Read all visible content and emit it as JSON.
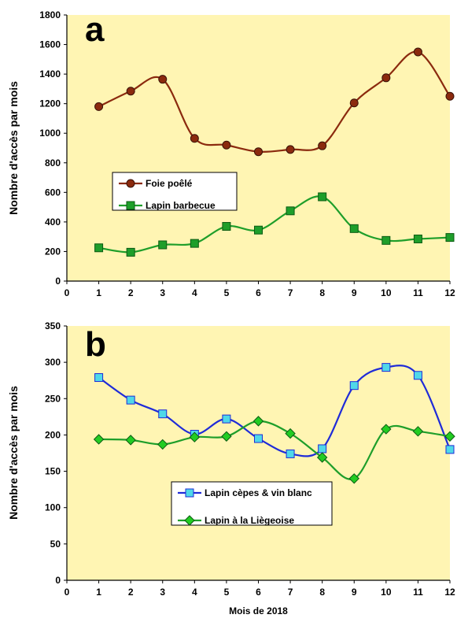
{
  "chart_data": [
    {
      "type": "line",
      "panel_label": "a",
      "ylabel": "Nombre d'accès par mois",
      "xlim": [
        0,
        12
      ],
      "ylim": [
        0,
        1800
      ],
      "x_ticks": [
        "0",
        "1",
        "2",
        "3",
        "4",
        "5",
        "6",
        "7",
        "8",
        "9",
        "10",
        "11",
        "12"
      ],
      "y_ticks": [
        "0",
        "200",
        "400",
        "600",
        "800",
        "1000",
        "1200",
        "1400",
        "1600",
        "1800"
      ],
      "grid": false,
      "legend_placement": "center-left",
      "x": [
        1,
        2,
        3,
        4,
        5,
        6,
        7,
        8,
        9,
        10,
        11,
        12
      ],
      "series": [
        {
          "name": "Foie poêlé",
          "color": "#8B2A0E",
          "marker": "circle",
          "values": [
            1180,
            1285,
            1365,
            965,
            920,
            875,
            890,
            915,
            1205,
            1375,
            1550,
            1250
          ]
        },
        {
          "name": "Lapin barbecue",
          "color": "#1E9E2A",
          "marker": "square",
          "values": [
            225,
            195,
            245,
            255,
            370,
            345,
            475,
            570,
            355,
            275,
            285,
            295
          ]
        }
      ]
    },
    {
      "type": "line",
      "panel_label": "b",
      "ylabel": "Nombre d'accès par mois",
      "xlabel": "Mois de 2018",
      "xlim": [
        0,
        12
      ],
      "ylim": [
        0,
        350
      ],
      "x_ticks": [
        "0",
        "1",
        "2",
        "3",
        "4",
        "5",
        "6",
        "7",
        "8",
        "9",
        "10",
        "11",
        "12"
      ],
      "y_ticks": [
        "0",
        "50",
        "100",
        "150",
        "200",
        "250",
        "300",
        "350"
      ],
      "grid": false,
      "legend_placement": "bottom-center",
      "x": [
        1,
        2,
        3,
        4,
        5,
        6,
        7,
        8,
        9,
        10,
        11,
        12
      ],
      "series": [
        {
          "name": "Lapin cèpes & vin blanc",
          "color": "#1F2BD8",
          "marker": "square",
          "marker_fill": "#4FD8E8",
          "values": [
            279,
            248,
            229,
            201,
            222,
            195,
            174,
            181,
            268,
            293,
            282,
            180
          ]
        },
        {
          "name": "Lapin à la Liègeoise",
          "color": "#1E9E2A",
          "marker": "diamond",
          "marker_fill": "#22CC22",
          "values": [
            194,
            193,
            187,
            197,
            198,
            219,
            202,
            169,
            140,
            208,
            205,
            198
          ]
        }
      ]
    }
  ],
  "colors": {
    "plot_background": "#FFF5B3",
    "axis": "#000000"
  }
}
